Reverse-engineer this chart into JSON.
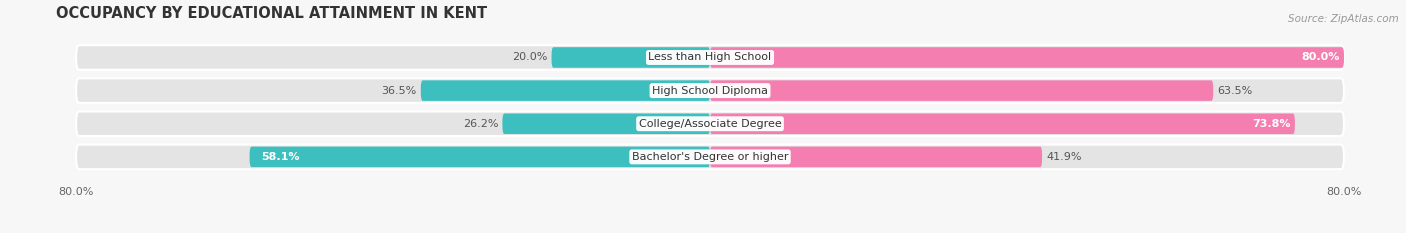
{
  "title": "OCCUPANCY BY EDUCATIONAL ATTAINMENT IN KENT",
  "source": "Source: ZipAtlas.com",
  "categories": [
    "Less than High School",
    "High School Diploma",
    "College/Associate Degree",
    "Bachelor's Degree or higher"
  ],
  "owner_values": [
    20.0,
    36.5,
    26.2,
    58.1
  ],
  "renter_values": [
    80.0,
    63.5,
    73.8,
    41.9
  ],
  "owner_color": "#3DBFBF",
  "renter_color": "#F47EB0",
  "xlim": 80.0,
  "x_left_label": "80.0%",
  "x_right_label": "80.0%",
  "bar_height": 0.62,
  "background_color": "#f0f0f0",
  "bar_bg_color": "#e4e4e4",
  "title_fontsize": 10.5,
  "label_fontsize": 8.0,
  "value_fontsize": 8.0,
  "tick_fontsize": 8.0,
  "source_fontsize": 7.5,
  "owner_inside_indices": [
    3
  ],
  "renter_inside_indices": [
    0,
    2
  ]
}
